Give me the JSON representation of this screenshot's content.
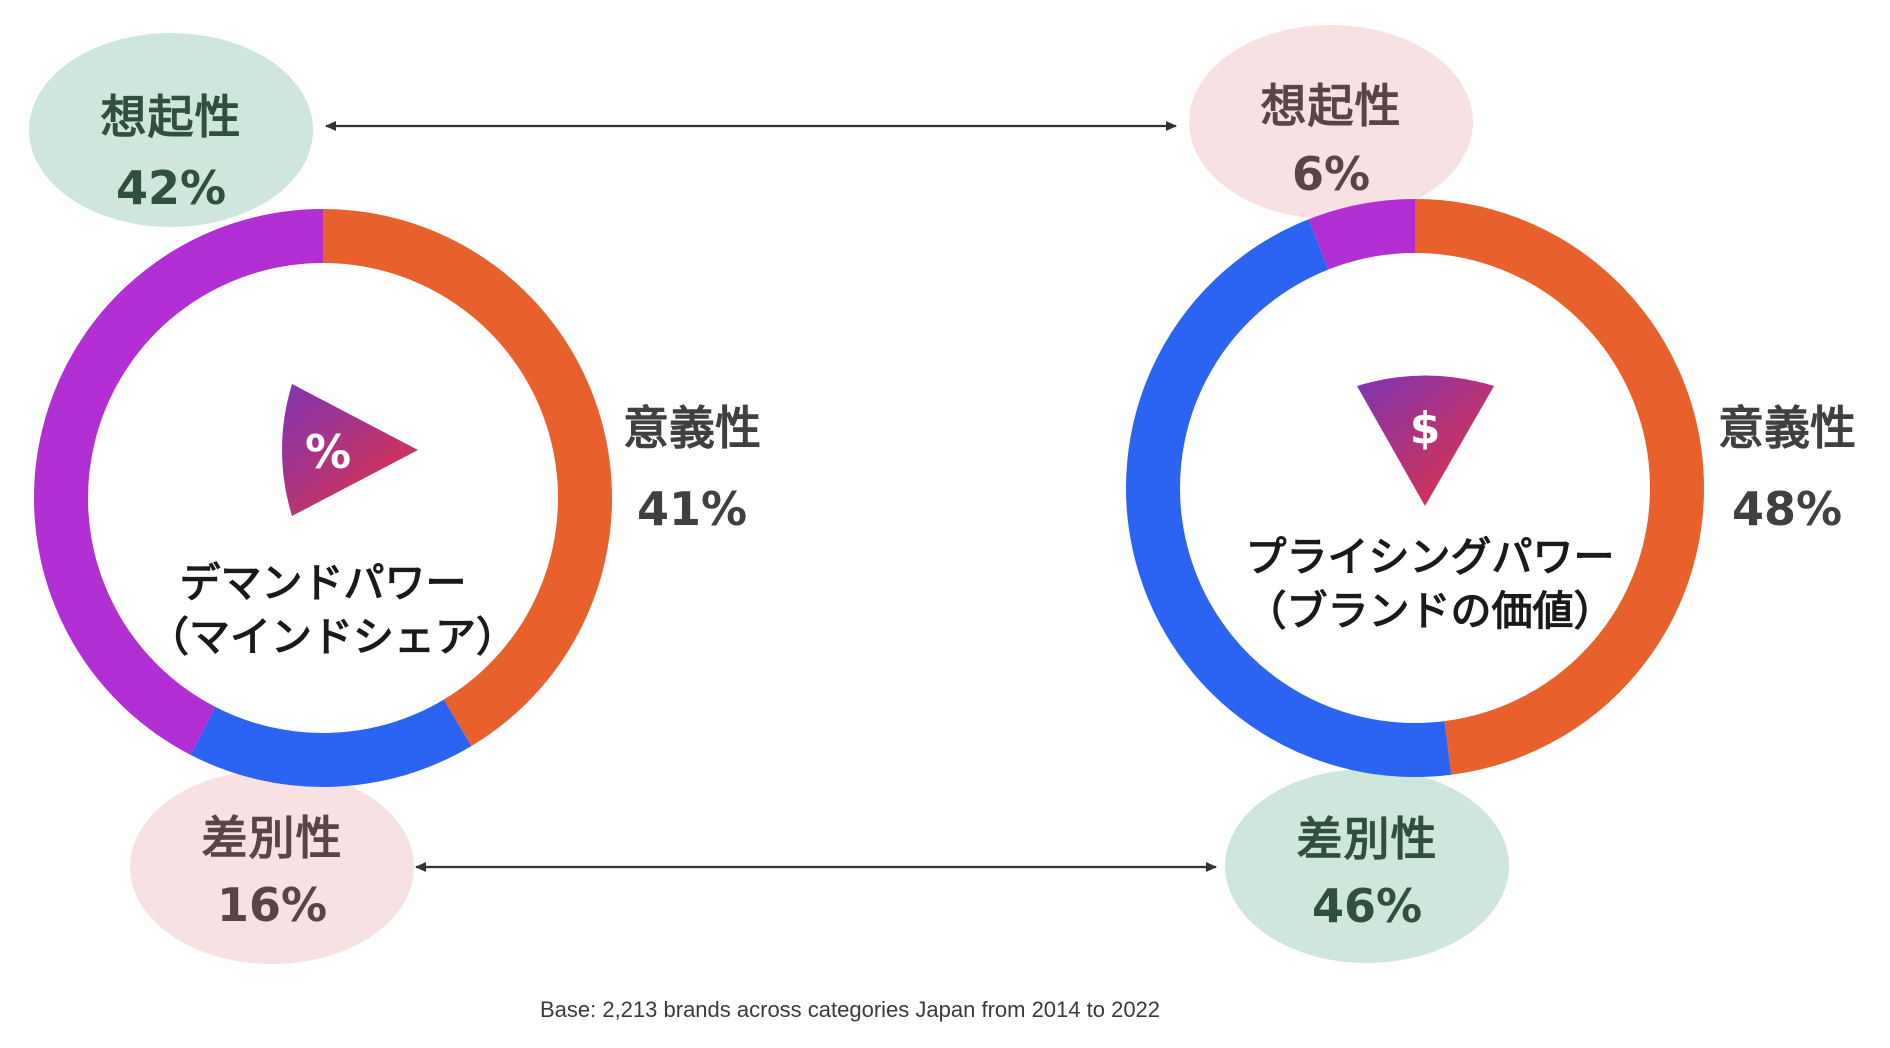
{
  "colors": {
    "meaning": "#E8602C",
    "difference": "#2B63F2",
    "salience": "#B12FD3",
    "bubble_green": "#CFE6DC",
    "bubble_pink": "#F7E1E3",
    "text_dark": "#404040",
    "icon_gradient_start": "#7E35B5",
    "icon_gradient_end": "#E8323F"
  },
  "chart_data": [
    {
      "type": "pie",
      "title": "デマンドパワー（マインドシェア）",
      "title_lines": [
        "デマンドパワー",
        "（マインドシェア）"
      ],
      "icon": "percent-icon",
      "slices": [
        {
          "label": "意義性",
          "value": 41,
          "color": "#E8602C"
        },
        {
          "label": "差別性",
          "value": 16,
          "color": "#2B63F2"
        },
        {
          "label": "想起性",
          "value": 42,
          "color": "#B12FD3"
        }
      ]
    },
    {
      "type": "pie",
      "title": "プライシングパワー（ブランドの価値）",
      "title_lines": [
        "プライシングパワー",
        "（ブランドの価値）"
      ],
      "icon": "dollar-icon",
      "slices": [
        {
          "label": "意義性",
          "value": 48,
          "color": "#E8602C"
        },
        {
          "label": "差別性",
          "value": 46,
          "color": "#2B63F2"
        },
        {
          "label": "想起性",
          "value": 6,
          "color": "#B12FD3"
        }
      ]
    }
  ],
  "bubbles": {
    "left_top": {
      "label": "想起性",
      "value": "42%"
    },
    "left_bottom": {
      "label": "差別性",
      "value": "16%"
    },
    "right_top": {
      "label": "想起性",
      "value": "6%"
    },
    "right_bottom": {
      "label": "差別性",
      "value": "46%"
    }
  },
  "side_labels": {
    "left": {
      "label": "意義性",
      "value": "41%"
    },
    "right": {
      "label": "意義性",
      "value": "48%"
    }
  },
  "icon_glyphs": {
    "left": "%",
    "right": "$"
  },
  "footnote": "Base: 2,213 brands across categories Japan from 2014 to 2022"
}
